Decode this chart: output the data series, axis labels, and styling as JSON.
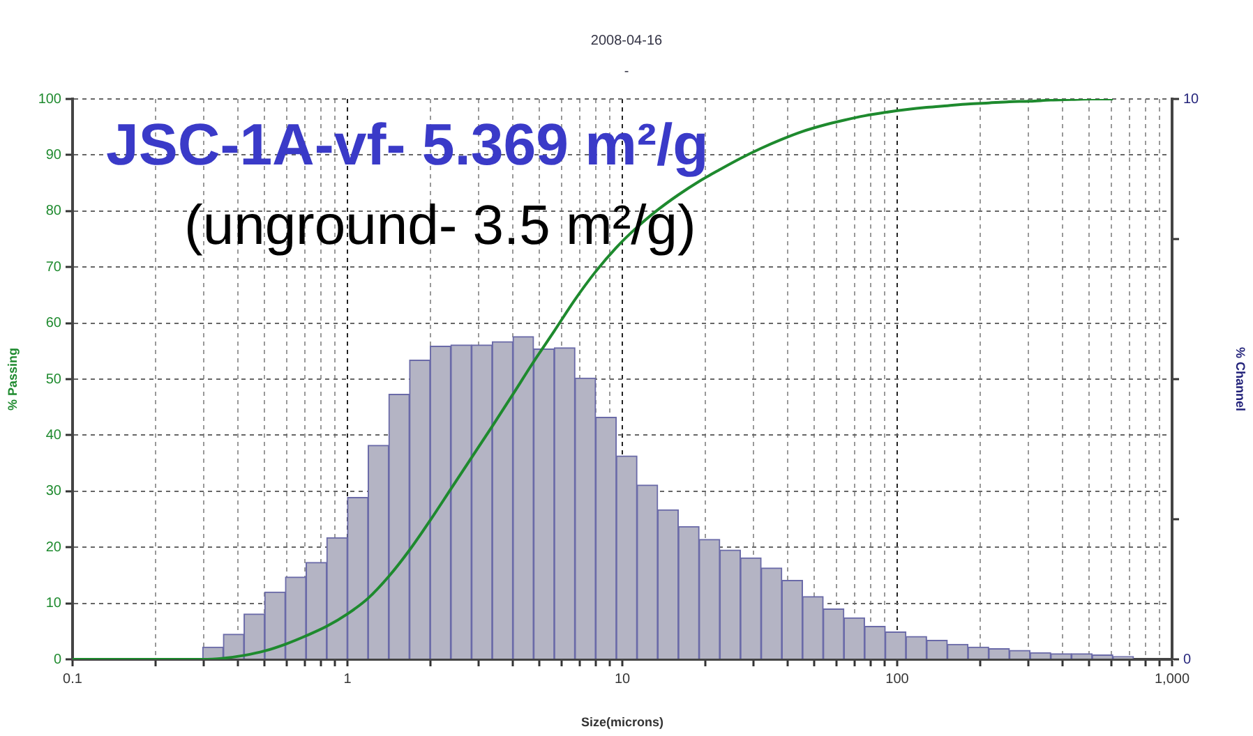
{
  "chart_data": {
    "type": "histogram",
    "title": "2008-04-16",
    "subtitle": "-",
    "xlabel": "Size(microns)",
    "ylabel": "% Passing",
    "y2label": "% Channel",
    "annotations": [
      "JSC-1A-vf- 5.369 m²/g",
      "(unground- 3.5 m²/g)"
    ],
    "log": "x",
    "grid": true,
    "legend": false,
    "xlim": [
      0.1,
      1000
    ],
    "xticks": [
      0.1,
      {
        "value": 0.2,
        "label": null
      },
      {
        "value": 0.3,
        "label": null
      },
      {
        "value": 0.4,
        "label": null
      },
      {
        "value": 0.5,
        "label": null
      },
      {
        "value": 0.6,
        "label": null
      },
      {
        "value": 0.7,
        "label": null
      },
      {
        "value": 0.8,
        "label": null
      },
      {
        "value": 0.9,
        "label": null
      },
      1,
      {
        "value": 2,
        "label": null
      },
      {
        "value": 3,
        "label": null
      },
      {
        "value": 4,
        "label": null
      },
      {
        "value": 5,
        "label": null
      },
      {
        "value": 6,
        "label": null
      },
      {
        "value": 7,
        "label": null
      },
      {
        "value": 8,
        "label": null
      },
      {
        "value": 9,
        "label": null
      },
      10,
      {
        "value": 20,
        "label": null
      },
      {
        "value": 30,
        "label": null
      },
      {
        "value": 40,
        "label": null
      },
      {
        "value": 50,
        "label": null
      },
      {
        "value": 60,
        "label": null
      },
      {
        "value": 70,
        "label": null
      },
      {
        "value": 80,
        "label": null
      },
      {
        "value": 90,
        "label": null
      },
      100,
      {
        "value": 200,
        "label": null
      },
      {
        "value": 300,
        "label": null
      },
      {
        "value": 400,
        "label": null
      },
      {
        "value": 500,
        "label": null
      },
      {
        "value": 600,
        "label": null
      },
      {
        "value": 700,
        "label": null
      },
      {
        "value": 800,
        "label": null
      },
      {
        "value": 900,
        "label": null
      },
      {
        "value": 1000,
        "label": "1,000"
      }
    ],
    "ylim": [
      0,
      100
    ],
    "yticks": [
      0,
      10,
      20,
      30,
      40,
      50,
      60,
      70,
      80,
      90,
      100
    ],
    "y2lim": [
      0,
      10
    ],
    "y2ticks": [
      0,
      {
        "value": 2.5,
        "label": null
      },
      {
        "value": 5,
        "label": null
      },
      {
        "value": 7.5,
        "label": null
      },
      10
    ],
    "series": [
      {
        "axis": "y2",
        "color": "#b4b4c4",
        "bins": [
          0.2973,
          0.3536,
          0.4204,
          0.5,
          0.5946,
          0.7071,
          0.8409,
          1,
          1.189,
          1.414,
          1.682,
          2,
          2.378,
          2.828,
          3.364,
          4,
          4.757,
          5.657,
          6.727,
          8,
          9.514,
          11.31,
          13.45,
          16,
          19.03,
          22.63,
          26.91,
          32,
          38.05,
          45.25,
          53.82,
          64,
          76.11,
          90.51,
          107.6,
          128,
          152.2,
          181,
          215.3,
          256,
          304.4,
          362,
          430.5,
          512,
          608.9,
          724.1
        ],
        "values": [
          0.22,
          0.45,
          0.81,
          1.2,
          1.47,
          1.73,
          2.17,
          2.89,
          3.82,
          4.73,
          5.34,
          5.59,
          5.61,
          5.61,
          5.67,
          5.76,
          5.54,
          5.56,
          5.02,
          4.32,
          3.63,
          3.11,
          2.67,
          2.37,
          2.14,
          1.95,
          1.81,
          1.63,
          1.41,
          1.12,
          0.9,
          0.74,
          0.59,
          0.49,
          0.41,
          0.34,
          0.27,
          0.22,
          0.19,
          0.16,
          0.12,
          0.1,
          0.1,
          0.08,
          0.05
        ]
      },
      {
        "type": "line",
        "color": "#1e8a2e",
        "x": [
          0.1,
          0.2973,
          0.3536,
          0.4204,
          0.5,
          0.5946,
          0.7071,
          0.8409,
          1,
          1.189,
          1.414,
          1.682,
          2,
          2.378,
          2.828,
          3.364,
          4,
          4.757,
          5.657,
          6.727,
          8,
          9.514,
          11.31,
          13.45,
          16,
          19.03,
          22.63,
          26.91,
          32,
          38.05,
          45.25,
          53.82,
          64,
          76.11,
          90.51,
          107.6,
          128,
          152.2,
          181,
          215.3,
          256,
          304.4,
          362,
          430.5,
          512,
          608.9
        ],
        "values": [
          0,
          0,
          0.2,
          0.7,
          1.5,
          2.7,
          4.2,
          5.9,
          8.1,
          10.9,
          14.8,
          19.5,
          24.8,
          30.4,
          36,
          41.6,
          47.3,
          53.1,
          58.6,
          64.2,
          69.2,
          73.5,
          77.1,
          80.2,
          82.9,
          85.3,
          87.4,
          89.4,
          91.2,
          92.8,
          94.2,
          95.3,
          96.2,
          97,
          97.6,
          98.1,
          98.5,
          98.8,
          99.1,
          99.3,
          99.5,
          99.6,
          99.8,
          99.9,
          100,
          100
        ]
      }
    ]
  }
}
